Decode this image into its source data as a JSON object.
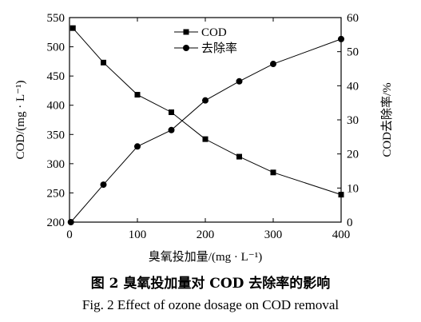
{
  "chart_data": {
    "type": "line",
    "x": [
      5,
      50,
      100,
      150,
      200,
      250,
      300,
      400
    ],
    "series": [
      {
        "name": "COD",
        "axis": "left",
        "marker": "square",
        "values": [
          532,
          473,
          418,
          388,
          342,
          312,
          285,
          247
        ]
      },
      {
        "name": "去除率",
        "axis": "right",
        "marker": "circle",
        "x": [
          2,
          50,
          100,
          150,
          200,
          250,
          300,
          400
        ],
        "values": [
          0,
          11,
          22.2,
          27,
          35.7,
          41.3,
          46.4,
          53.7
        ]
      }
    ],
    "xlabel": "臭氧投加量/(mg · L⁻¹)",
    "ylabel_left": "COD/(mg · L⁻¹)",
    "ylabel_right": "COD去除率/%",
    "xlim": [
      0,
      400
    ],
    "ylim_left": [
      200,
      550
    ],
    "ylim_right": [
      0,
      60
    ],
    "xticks": [
      0,
      100,
      200,
      300,
      400
    ],
    "yticks_left": [
      200,
      250,
      300,
      350,
      400,
      450,
      500,
      550
    ],
    "yticks_right": [
      0,
      10,
      20,
      30,
      40,
      50,
      60
    ],
    "legend_position": "top-center",
    "grid": false
  },
  "caption": {
    "cn": "图 2 臭氧投加量对 COD 去除率的影响",
    "en": "Fig. 2 Effect of ozone dosage on COD removal"
  }
}
